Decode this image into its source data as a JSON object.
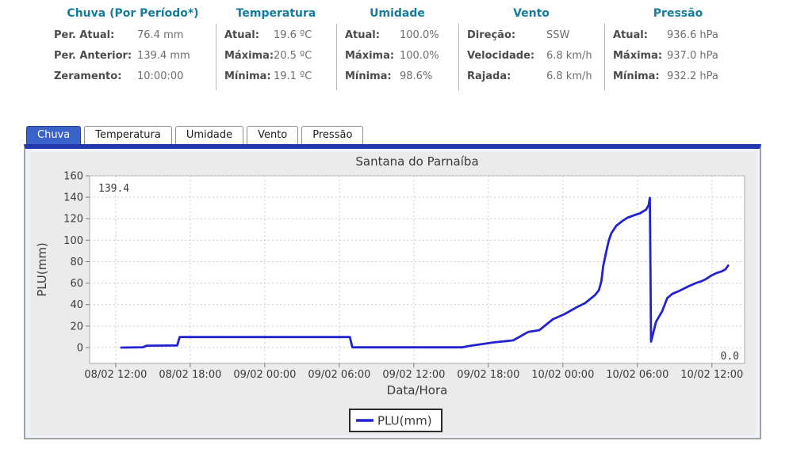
{
  "summary": {
    "groups": [
      {
        "title": "Chuva (Por Período*)",
        "rows": [
          {
            "label": "Per. Atual:",
            "value": "76.4 mm"
          },
          {
            "label": "Per. Anterior:",
            "value": "139.4 mm"
          },
          {
            "label": "Zeramento:",
            "value": "10:00:00"
          }
        ]
      },
      {
        "title": "Temperatura",
        "rows": [
          {
            "label": "Atual:",
            "value": "19.6 ºC"
          },
          {
            "label": "Máxima:",
            "value": "20.5 ºC"
          },
          {
            "label": "Mínima:",
            "value": "19.1 ºC"
          }
        ]
      },
      {
        "title": "Umidade",
        "rows": [
          {
            "label": "Atual:",
            "value": "100.0%"
          },
          {
            "label": "Máxima:",
            "value": "100.0%"
          },
          {
            "label": "Mínima:",
            "value": "98.6%"
          }
        ]
      },
      {
        "title": "Vento",
        "rows": [
          {
            "label": "Direção:",
            "value": "SSW"
          },
          {
            "label": "Velocidade:",
            "value": "6.8 km/h"
          },
          {
            "label": "Rajada:",
            "value": "6.8 km/h"
          }
        ]
      },
      {
        "title": "Pressão",
        "rows": [
          {
            "label": "Atual:",
            "value": "936.6 hPa"
          },
          {
            "label": "Máxima:",
            "value": "937.0 hPa"
          },
          {
            "label": "Mínima:",
            "value": "932.2 hPa"
          }
        ]
      }
    ]
  },
  "tabs": [
    {
      "label": "Chuva",
      "active": true
    },
    {
      "label": "Temperatura",
      "active": false
    },
    {
      "label": "Umidade",
      "active": false
    },
    {
      "label": "Vento",
      "active": false
    },
    {
      "label": "Pressão",
      "active": false
    }
  ],
  "chart_data": {
    "type": "line",
    "title": "Santana do Parnaíba",
    "xlabel": "Data/Hora",
    "ylabel": "PLU(mm)",
    "x_unit": "hours since 08/02 12:00",
    "xlim": [
      -2.1,
      50.63
    ],
    "ylim": [
      -14.75,
      160
    ],
    "grid": true,
    "y_ticks": [
      0,
      20,
      40,
      60,
      80,
      100,
      120,
      140,
      160
    ],
    "x_ticks": [
      {
        "h": 0,
        "label": "08/02 12:00"
      },
      {
        "h": 6,
        "label": "08/02 18:00"
      },
      {
        "h": 12,
        "label": "09/02 00:00"
      },
      {
        "h": 18,
        "label": "09/02 06:00"
      },
      {
        "h": 24,
        "label": "09/02 12:00"
      },
      {
        "h": 30,
        "label": "09/02 18:00"
      },
      {
        "h": 36,
        "label": "10/02 00:00"
      },
      {
        "h": 42,
        "label": "10/02 06:00"
      },
      {
        "h": 48,
        "label": "10/02 12:00"
      }
    ],
    "series": [
      {
        "name": "PLU(mm)",
        "color": "#2222cf",
        "points": [
          [
            0.45,
            0
          ],
          [
            2.2,
            0.3
          ],
          [
            2.5,
            1.8
          ],
          [
            4.95,
            2.0
          ],
          [
            5.15,
            9.8
          ],
          [
            18.85,
            9.8
          ],
          [
            19.05,
            0.2
          ],
          [
            27.9,
            0.2
          ],
          [
            28.4,
            1.4
          ],
          [
            30.4,
            4.8
          ],
          [
            32.0,
            6.7
          ],
          [
            33.2,
            14.5
          ],
          [
            34.1,
            16.2
          ],
          [
            35.2,
            26.5
          ],
          [
            36.1,
            31
          ],
          [
            37.1,
            37.5
          ],
          [
            37.8,
            41.5
          ],
          [
            38.6,
            49
          ],
          [
            38.9,
            53.5
          ],
          [
            39.1,
            62
          ],
          [
            39.25,
            76
          ],
          [
            39.5,
            90
          ],
          [
            39.7,
            100
          ],
          [
            39.9,
            106.5
          ],
          [
            40.3,
            113.5
          ],
          [
            40.8,
            118
          ],
          [
            41.2,
            121
          ],
          [
            41.8,
            123.5
          ],
          [
            42.2,
            125
          ],
          [
            42.7,
            128.5
          ],
          [
            42.9,
            132.5
          ],
          [
            43.0,
            139.4
          ],
          [
            43.1,
            5.5
          ],
          [
            43.5,
            24
          ],
          [
            44.0,
            34
          ],
          [
            44.4,
            46
          ],
          [
            44.8,
            50
          ],
          [
            45.4,
            53
          ],
          [
            46.1,
            57
          ],
          [
            46.7,
            60
          ],
          [
            47.2,
            62
          ],
          [
            47.5,
            63.7
          ],
          [
            48.0,
            67.4
          ],
          [
            48.4,
            69.6
          ],
          [
            48.8,
            71
          ],
          [
            49.1,
            73
          ],
          [
            49.3,
            76.4
          ]
        ]
      }
    ],
    "annotations": [
      {
        "text": "139.4",
        "pos": "top-left"
      },
      {
        "text": "0.0",
        "pos": "bottom-right"
      }
    ],
    "legend": {
      "label": "PLU(mm)",
      "position": "bottom-center"
    }
  },
  "colors": {
    "accent_teal": "#157c9e",
    "tab_active_bg": "#3a63c9",
    "tab_strip": "#2238ae",
    "line_blue": "#2222cf",
    "chart_bg": "#ebebeb",
    "plot_bg": "#ffffff",
    "grid": "#cccccc",
    "axis_text": "#3a3a3a"
  }
}
